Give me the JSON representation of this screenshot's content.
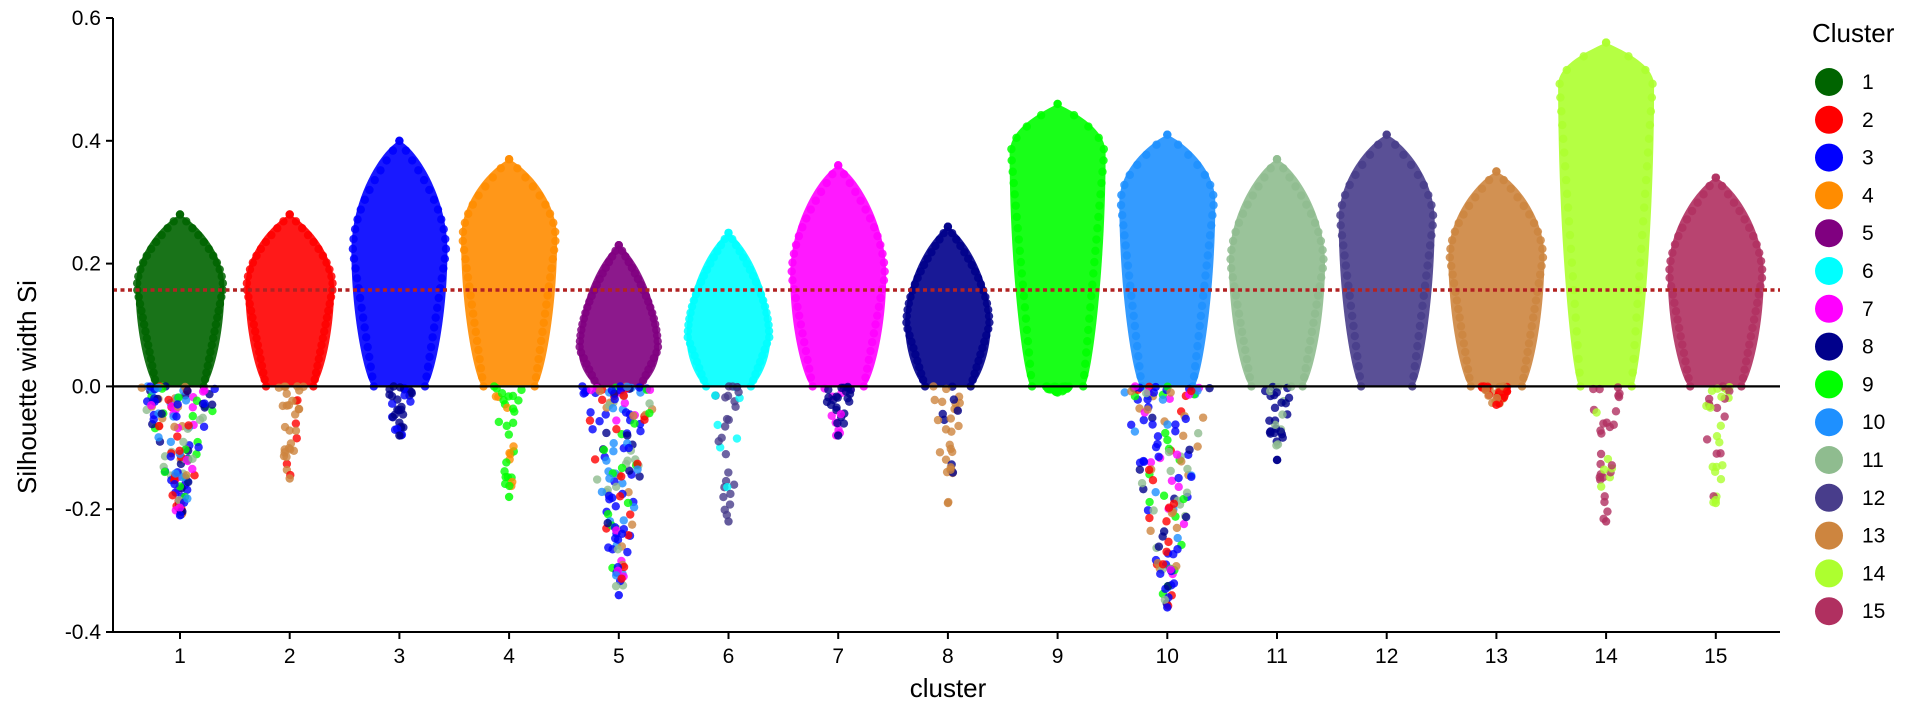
{
  "chart_data": {
    "type": "beeswarm",
    "title": "",
    "xlabel": "cluster",
    "ylabel": "Silhouette width Si",
    "ylim": [
      -0.4,
      0.6
    ],
    "yticks": [
      "-0.4",
      "-0.2",
      "0.0",
      "0.2",
      "0.4",
      "0.6"
    ],
    "categories": [
      "1",
      "2",
      "3",
      "4",
      "5",
      "6",
      "7",
      "8",
      "9",
      "10",
      "11",
      "12",
      "13",
      "14",
      "15"
    ],
    "reference_lines": [
      {
        "y": 0.0,
        "style": "solid",
        "color": "#000000"
      },
      {
        "y": 0.157,
        "style": "dotted",
        "color": "#B22222"
      }
    ],
    "legend": {
      "title": "Cluster",
      "position": "right",
      "entries": [
        {
          "label": "1",
          "color": "#006400"
        },
        {
          "label": "2",
          "color": "#FF0000"
        },
        {
          "label": "3",
          "color": "#0000FF"
        },
        {
          "label": "4",
          "color": "#FF8C00"
        },
        {
          "label": "5",
          "color": "#800080"
        },
        {
          "label": "6",
          "color": "#00FFFF"
        },
        {
          "label": "7",
          "color": "#FF00FF"
        },
        {
          "label": "8",
          "color": "#00008B"
        },
        {
          "label": "9",
          "color": "#00FF00"
        },
        {
          "label": "10",
          "color": "#1E90FF"
        },
        {
          "label": "11",
          "color": "#8FBC8F"
        },
        {
          "label": "12",
          "color": "#483D8B"
        },
        {
          "label": "13",
          "color": "#CD853F"
        },
        {
          "label": "14",
          "color": "#ADFF2F"
        },
        {
          "label": "15",
          "color": "#B03060"
        }
      ]
    },
    "series": [
      {
        "name": "1",
        "color": "#006400",
        "max": 0.28,
        "mid": 0.16,
        "min": -0.21,
        "neg_color": "#0000FF",
        "neg_dense": true
      },
      {
        "name": "2",
        "color": "#FF0000",
        "max": 0.28,
        "mid": 0.16,
        "min": -0.15,
        "neg_color": "#CD853F",
        "neg_dense": false
      },
      {
        "name": "3",
        "color": "#0000FF",
        "max": 0.4,
        "mid": 0.22,
        "min": -0.08,
        "neg_color": "#00008B",
        "neg_dense": false
      },
      {
        "name": "4",
        "color": "#FF8C00",
        "max": 0.37,
        "mid": 0.24,
        "min": -0.18,
        "neg_color": "#00FF00",
        "neg_dense": false
      },
      {
        "name": "5",
        "color": "#800080",
        "max": 0.23,
        "mid": 0.06,
        "min": -0.34,
        "neg_color": "#0000FF",
        "neg_dense": true
      },
      {
        "name": "6",
        "color": "#00FFFF",
        "max": 0.25,
        "mid": 0.08,
        "min": -0.22,
        "neg_color": "#483D8B",
        "neg_dense": false
      },
      {
        "name": "7",
        "color": "#FF00FF",
        "max": 0.36,
        "mid": 0.18,
        "min": -0.08,
        "neg_color": "#00008B",
        "neg_dense": false
      },
      {
        "name": "8",
        "color": "#00008B",
        "max": 0.26,
        "mid": 0.1,
        "min": -0.19,
        "neg_color": "#CD853F",
        "neg_dense": false
      },
      {
        "name": "9",
        "color": "#00FF00",
        "max": 0.46,
        "mid": 0.38,
        "min": -0.01,
        "neg_color": "#00FF00",
        "neg_dense": false
      },
      {
        "name": "10",
        "color": "#1E90FF",
        "max": 0.41,
        "mid": 0.3,
        "min": -0.36,
        "neg_color": "#0000FF",
        "neg_dense": true
      },
      {
        "name": "11",
        "color": "#8FBC8F",
        "max": 0.37,
        "mid": 0.2,
        "min": -0.12,
        "neg_color": "#00008B",
        "neg_dense": false
      },
      {
        "name": "12",
        "color": "#483D8B",
        "max": 0.41,
        "mid": 0.27,
        "min": 0.0,
        "neg_color": "#00FFFF",
        "neg_dense": false
      },
      {
        "name": "13",
        "color": "#CD853F",
        "max": 0.35,
        "mid": 0.21,
        "min": -0.03,
        "neg_color": "#FF0000",
        "neg_dense": false
      },
      {
        "name": "14",
        "color": "#ADFF2F",
        "max": 0.56,
        "mid": 0.49,
        "min": -0.22,
        "neg_color": "#B03060",
        "neg_dense": false
      },
      {
        "name": "15",
        "color": "#B03060",
        "max": 0.34,
        "mid": 0.18,
        "min": -0.19,
        "neg_color": "#ADFF2F",
        "neg_dense": false
      }
    ]
  }
}
